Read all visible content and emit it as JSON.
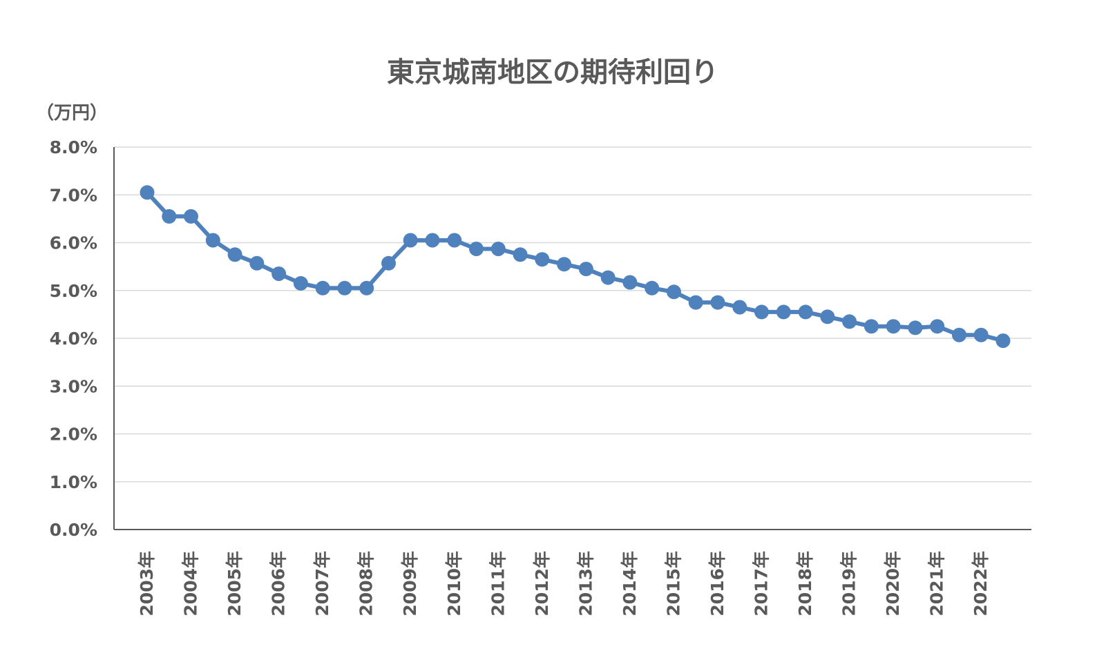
{
  "chart_data": {
    "type": "line",
    "title": "東京城南地区の期待利回り",
    "unit_label": "（万円）",
    "ylim": [
      0,
      8
    ],
    "y_ticks": [
      "0.0%",
      "1.0%",
      "2.0%",
      "3.0%",
      "4.0%",
      "5.0%",
      "6.0%",
      "7.0%",
      "8.0%"
    ],
    "x_tick_labels": [
      "2003年",
      "2004年",
      "2005年",
      "2006年",
      "2007年",
      "2008年",
      "2009年",
      "2010年",
      "2011年",
      "2012年",
      "2013年",
      "2014年",
      "2015年",
      "2016年",
      "2017年",
      "2018年",
      "2019年",
      "2020年",
      "2021年",
      "2022年"
    ],
    "grid": true,
    "legend": "none",
    "color": "#4f81bd",
    "series": [
      {
        "values": [
          7.05,
          6.55,
          6.55,
          6.05,
          5.75,
          5.57,
          5.35,
          5.15,
          5.05,
          5.05,
          5.05,
          5.57,
          6.05,
          6.05,
          6.05,
          5.87,
          5.87,
          5.75,
          5.65,
          5.55,
          5.45,
          5.27,
          5.17,
          5.05,
          4.97,
          4.75,
          4.75,
          4.65,
          4.55,
          4.55,
          4.55,
          4.45,
          4.35,
          4.25,
          4.25,
          4.22,
          4.25,
          4.07,
          4.07,
          3.95
        ]
      }
    ]
  }
}
